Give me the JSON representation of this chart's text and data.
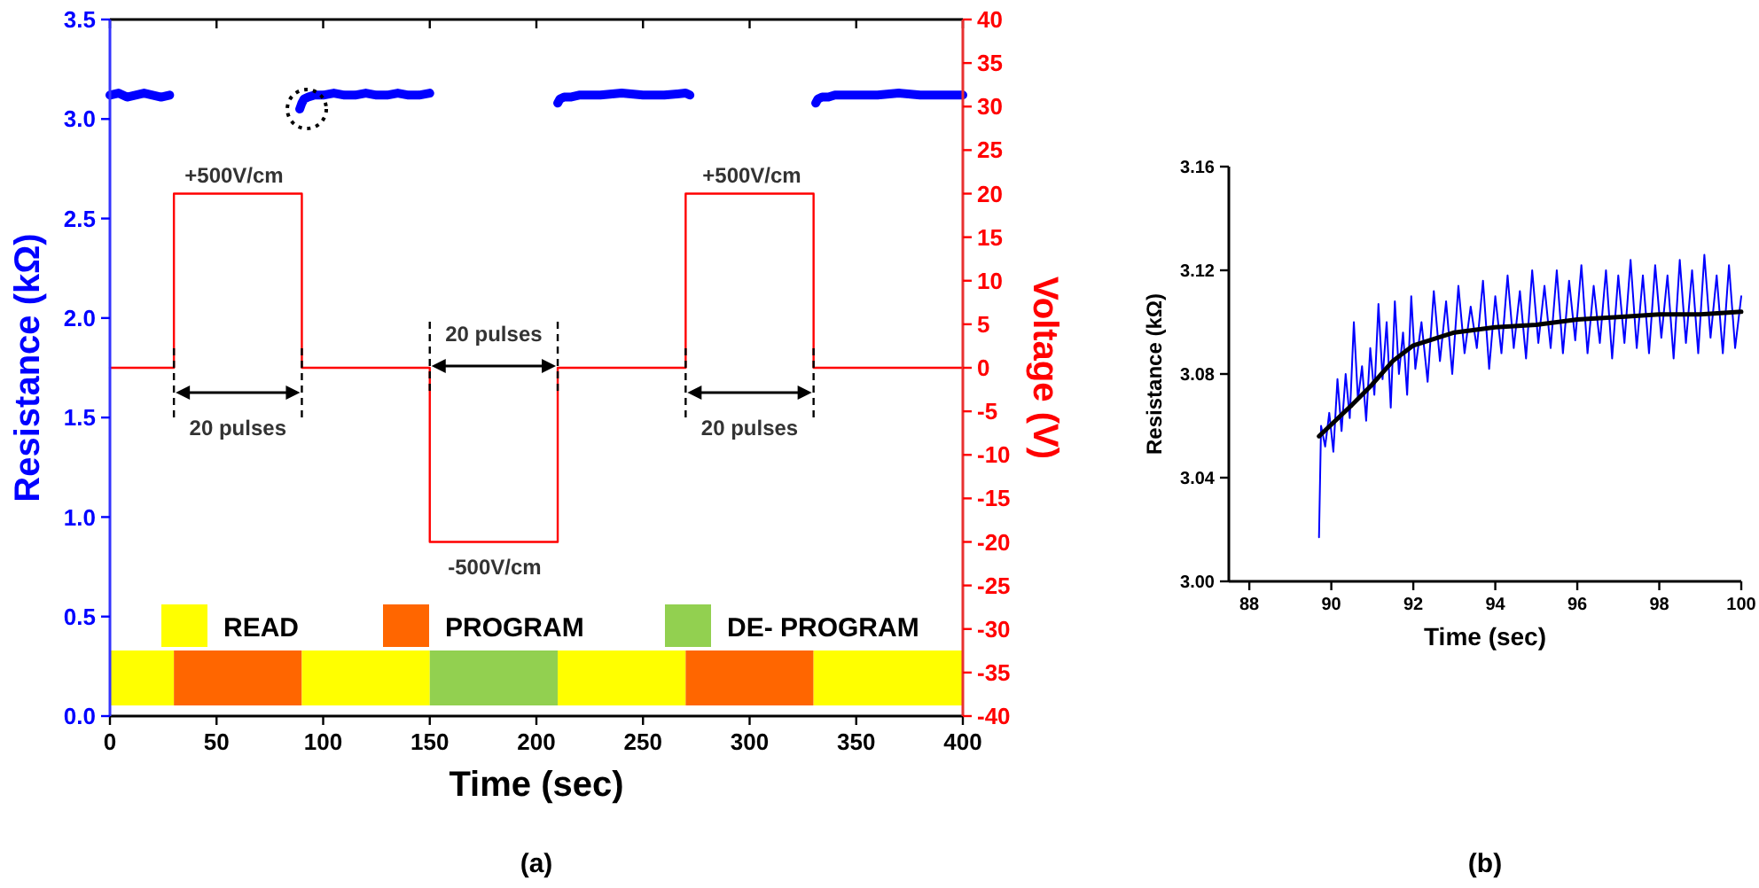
{
  "chart_data": [
    {
      "type": "line",
      "xlabel": "Time (sec)",
      "ylabel": "Resistance (kΩ)",
      "y2label": "Voltage (V)",
      "legend": "bottom",
      "xlim": [
        0,
        400
      ],
      "xticks": [
        0,
        50,
        100,
        150,
        200,
        250,
        300,
        350,
        400
      ],
      "ylim": [
        0,
        3.5
      ],
      "yticks": [
        {
          "value": 0,
          "label": "0.0"
        },
        {
          "value": 0.5,
          "label": "0.5"
        },
        {
          "value": 1,
          "label": "1.0"
        },
        {
          "value": 1.5,
          "label": "1.5"
        },
        {
          "value": 2,
          "label": "2.0"
        },
        {
          "value": 2.5,
          "label": "2.5"
        },
        {
          "value": 3,
          "label": "3.0"
        },
        {
          "value": 3.5,
          "label": "3.5"
        }
      ],
      "y2lim": [
        -40,
        40
      ],
      "y2ticks": [
        -40,
        -35,
        -30,
        -25,
        -20,
        -15,
        -10,
        -5,
        0,
        5,
        10,
        15,
        20,
        25,
        30,
        35,
        40
      ],
      "series": [
        {
          "color": "#0000ff",
          "x": [
            0,
            4,
            8,
            12,
            16,
            20,
            24,
            28,
            60,
            89,
            90,
            91,
            93,
            96,
            100,
            105,
            110,
            115,
            120,
            125,
            130,
            135,
            140,
            145,
            150,
            180,
            210,
            211,
            213,
            216,
            220,
            230,
            240,
            250,
            260,
            270,
            272,
            300,
            331,
            332,
            334,
            337,
            340,
            350,
            360,
            370,
            380,
            390,
            400
          ],
          "values": [
            3.12,
            3.13,
            3.11,
            3.12,
            3.13,
            3.12,
            3.11,
            3.12,
            null,
            3.05,
            3.08,
            3.1,
            3.11,
            3.12,
            3.12,
            3.13,
            3.12,
            3.12,
            3.13,
            3.12,
            3.12,
            3.13,
            3.12,
            3.12,
            3.13,
            null,
            3.08,
            3.1,
            3.11,
            3.11,
            3.12,
            3.12,
            3.13,
            3.12,
            3.12,
            3.13,
            3.12,
            null,
            3.08,
            3.1,
            3.11,
            3.11,
            3.12,
            3.12,
            3.12,
            3.13,
            3.12,
            3.12,
            3.12
          ]
        },
        {
          "color": "#ff0000",
          "axis": "y2",
          "x": [
            0,
            30,
            30,
            90,
            90,
            150,
            150,
            210,
            210,
            270,
            270,
            330,
            330,
            400
          ],
          "values": [
            0,
            0,
            20,
            20,
            0,
            0,
            -20,
            -20,
            0,
            0,
            20,
            20,
            0,
            0
          ]
        }
      ],
      "bands": [
        {
          "axis": "x",
          "from": 0,
          "to": 30,
          "color": "#ffff00",
          "label": "READ"
        },
        {
          "axis": "x",
          "from": 30,
          "to": 90,
          "color": "#ff6600",
          "label": "PROGRAM"
        },
        {
          "axis": "x",
          "from": 90,
          "to": 150,
          "color": "#ffff00"
        },
        {
          "axis": "x",
          "from": 150,
          "to": 210,
          "color": "#92d050",
          "label": "DE- PROGRAM"
        },
        {
          "axis": "x",
          "from": 210,
          "to": 270,
          "color": "#ffff00"
        },
        {
          "axis": "x",
          "from": 270,
          "to": 330,
          "color": "#ff6600"
        },
        {
          "axis": "x",
          "from": 330,
          "to": 400,
          "color": "#ffff00"
        }
      ],
      "annotations": [
        "+500V/cm",
        "+500V/cm",
        "-500V/cm",
        {
          "text": "20 pulses",
          "x": 30,
          "y": 1.75
        },
        {
          "text": "20 pulses",
          "x": 150,
          "y": 1.75
        },
        {
          "text": "20 pulses",
          "x": 270,
          "y": 1.75
        },
        "(a)"
      ]
    },
    {
      "type": "line",
      "xlabel": "Time (sec)",
      "ylabel": "Resistance (kΩ)",
      "xlim": [
        87.5,
        100
      ],
      "xticks": [
        88,
        90,
        92,
        94,
        96,
        98,
        100
      ],
      "ylim": [
        3.0,
        3.16
      ],
      "yticks": [
        {
          "value": 3,
          "label": "3.00"
        },
        {
          "value": 3.04,
          "label": "3.04"
        },
        {
          "value": 3.08,
          "label": "3.08"
        },
        {
          "value": 3.12,
          "label": "3.12"
        },
        {
          "value": 3.16,
          "label": "3.16"
        }
      ],
      "series": [
        {
          "color": "#0000ff",
          "x": [
            89.7,
            89.75,
            89.85,
            89.95,
            90.05,
            90.15,
            90.25,
            90.35,
            90.45,
            90.55,
            90.65,
            90.75,
            90.85,
            90.95,
            91.05,
            91.15,
            91.25,
            91.35,
            91.45,
            91.55,
            91.65,
            91.75,
            91.85,
            91.95,
            92.05,
            92.2,
            92.35,
            92.5,
            92.65,
            92.8,
            92.95,
            93.1,
            93.25,
            93.4,
            93.55,
            93.7,
            93.85,
            94,
            94.15,
            94.3,
            94.45,
            94.6,
            94.75,
            94.9,
            95.05,
            95.2,
            95.35,
            95.5,
            95.65,
            95.8,
            95.95,
            96.1,
            96.25,
            96.4,
            96.55,
            96.7,
            96.85,
            97,
            97.15,
            97.3,
            97.45,
            97.6,
            97.75,
            97.9,
            98.05,
            98.2,
            98.35,
            98.5,
            98.65,
            98.8,
            98.95,
            99.1,
            99.25,
            99.4,
            99.55,
            99.7,
            99.85,
            100
          ],
          "values": [
            3.017,
            3.06,
            3.052,
            3.065,
            3.05,
            3.078,
            3.058,
            3.08,
            3.063,
            3.1,
            3.07,
            3.083,
            3.062,
            3.09,
            3.072,
            3.107,
            3.078,
            3.1,
            3.067,
            3.108,
            3.08,
            3.096,
            3.072,
            3.11,
            3.082,
            3.1,
            3.077,
            3.112,
            3.085,
            3.108,
            3.08,
            3.114,
            3.088,
            3.106,
            3.09,
            3.116,
            3.082,
            3.11,
            3.088,
            3.118,
            3.09,
            3.112,
            3.086,
            3.12,
            3.092,
            3.114,
            3.09,
            3.12,
            3.088,
            3.116,
            3.093,
            3.122,
            3.088,
            3.114,
            3.092,
            3.12,
            3.086,
            3.118,
            3.092,
            3.124,
            3.09,
            3.118,
            3.088,
            3.122,
            3.094,
            3.118,
            3.086,
            3.124,
            3.092,
            3.12,
            3.088,
            3.126,
            3.094,
            3.118,
            3.088,
            3.122,
            3.09,
            3.11
          ]
        },
        {
          "color": "#000000",
          "x": [
            89.7,
            90.5,
            91,
            91.5,
            92,
            93,
            94,
            95,
            96,
            97,
            98,
            99,
            100
          ],
          "values": [
            3.056,
            3.068,
            3.076,
            3.085,
            3.091,
            3.096,
            3.098,
            3.099,
            3.101,
            3.102,
            3.103,
            3.103,
            3.104
          ]
        }
      ],
      "annotations": [
        "(b)"
      ]
    }
  ]
}
